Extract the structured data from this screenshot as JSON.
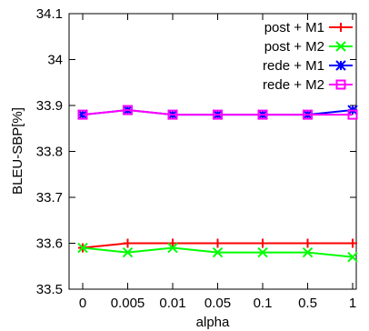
{
  "chart_data": {
    "type": "line",
    "title": "",
    "xlabel": "alpha",
    "ylabel": "BLEU-SBP[%]",
    "categories": [
      "0",
      "0.005",
      "0.01",
      "0.05",
      "0.1",
      "0.5",
      "1"
    ],
    "ylim": [
      33.5,
      34.1
    ],
    "yticks": [
      "33.5",
      "33.6",
      "33.7",
      "33.8",
      "33.9",
      "34",
      "34.1"
    ],
    "grid": false,
    "legend": "top-right",
    "series": [
      {
        "name": "post + M1",
        "color": "#ff0000",
        "marker": "plus",
        "values": [
          33.59,
          33.6,
          33.6,
          33.6,
          33.6,
          33.6,
          33.6
        ]
      },
      {
        "name": "post + M2",
        "color": "#00ff00",
        "marker": "x",
        "values": [
          33.59,
          33.58,
          33.59,
          33.58,
          33.58,
          33.58,
          33.57
        ]
      },
      {
        "name": "rede + M1",
        "color": "#0000ff",
        "marker": "star",
        "values": [
          33.88,
          33.89,
          33.88,
          33.88,
          33.88,
          33.88,
          33.89
        ]
      },
      {
        "name": "rede + M2",
        "color": "#ff00ff",
        "marker": "square",
        "values": [
          33.88,
          33.89,
          33.88,
          33.88,
          33.88,
          33.88,
          33.88
        ]
      }
    ]
  }
}
